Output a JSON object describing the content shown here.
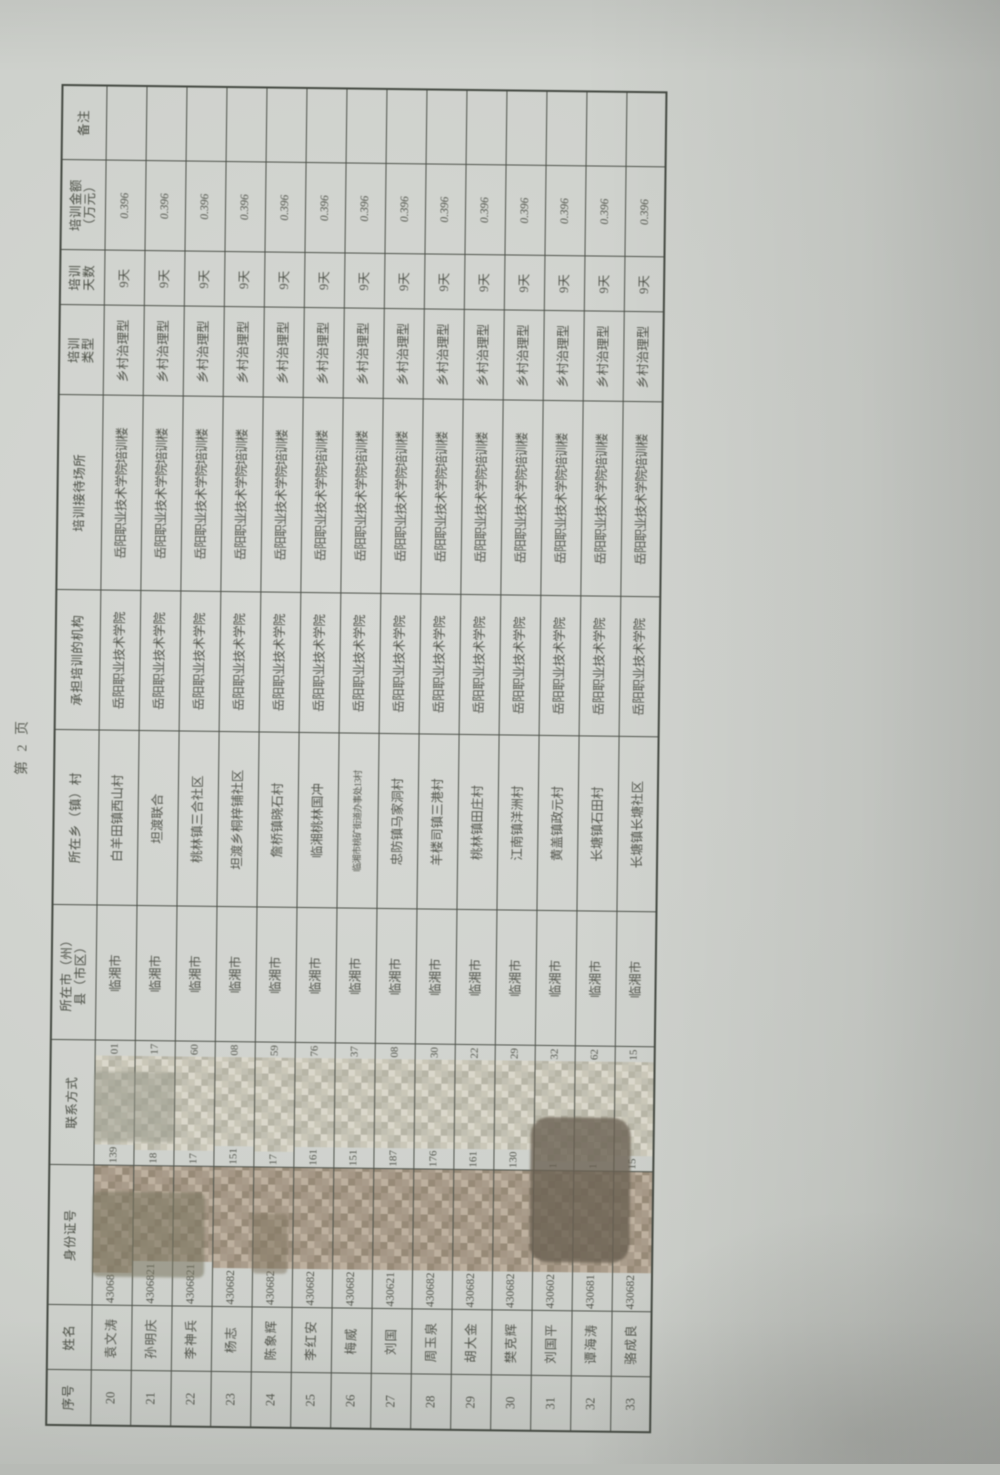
{
  "page_label": "第 2 页",
  "colors": {
    "paper": "#cdd0cb",
    "ink": "#51544b",
    "mosaic_tan": "#ab9d8b",
    "mosaic_cream": "#cdcaba"
  },
  "table": {
    "columns": [
      "序号",
      "姓名",
      "身份证号",
      "联系方式",
      "所在市（州）\n县（市区）",
      "所在乡（镇）村",
      "承担培训的机构",
      "培训接待场所",
      "培训\n类型",
      "培训\n天数",
      "培训金额\n（万元）",
      "备注"
    ],
    "rows": [
      {
        "no": "20",
        "name": "袁文涛",
        "id_prefix": "43068",
        "phone_prefix": "139",
        "phone_suffix": "01",
        "city": "临湘市",
        "village": "白羊田镇西山村",
        "org": "岳阳职业技术学院",
        "venue": "岳阳职业技术学院培训楼",
        "type": "乡村治理型",
        "days": "9天",
        "amount": "0.396",
        "note": ""
      },
      {
        "no": "21",
        "name": "孙明庆",
        "id_prefix": "4306821",
        "phone_prefix": "18",
        "phone_suffix": "17",
        "city": "临湘市",
        "village": "坦渡联合",
        "org": "岳阳职业技术学院",
        "venue": "岳阳职业技术学院培训楼",
        "type": "乡村治理型",
        "days": "9天",
        "amount": "0.396",
        "note": ""
      },
      {
        "no": "22",
        "name": "李神兵",
        "id_prefix": "4306821",
        "phone_prefix": "17",
        "phone_suffix": "60",
        "city": "临湘市",
        "village": "桃林镇三合社区",
        "org": "岳阳职业技术学院",
        "venue": "岳阳职业技术学院培训楼",
        "type": "乡村治理型",
        "days": "9天",
        "amount": "0.396",
        "note": ""
      },
      {
        "no": "23",
        "name": "杨志",
        "id_prefix": "430682",
        "phone_prefix": "151",
        "phone_suffix": "08",
        "city": "临湘市",
        "village": "坦渡乡桐梓铺社区",
        "org": "岳阳职业技术学院",
        "venue": "岳阳职业技术学院培训楼",
        "type": "乡村治理型",
        "days": "9天",
        "amount": "0.396",
        "note": ""
      },
      {
        "no": "24",
        "name": "陈象辉",
        "id_prefix": "430682",
        "phone_prefix": "17",
        "phone_suffix": "59",
        "city": "临湘市",
        "village": "詹桥镇晓石村",
        "org": "岳阳职业技术学院",
        "venue": "岳阳职业技术学院培训楼",
        "type": "乡村治理型",
        "days": "9天",
        "amount": "0.396",
        "note": ""
      },
      {
        "no": "25",
        "name": "李红安",
        "id_prefix": "430682",
        "phone_prefix": "161",
        "phone_suffix": "76",
        "city": "临湘市",
        "village": "临湘桃林国冲",
        "org": "岳阳职业技术学院",
        "venue": "岳阳职业技术学院培训楼",
        "type": "乡村治理型",
        "days": "9天",
        "amount": "0.396",
        "note": ""
      },
      {
        "no": "26",
        "name": "梅威",
        "id_prefix": "430682",
        "phone_prefix": "151",
        "phone_suffix": "37",
        "city": "临湘市",
        "village": "临湘市桃矿街道办事处13村",
        "org": "岳阳职业技术学院",
        "venue": "岳阳职业技术学院培训楼",
        "type": "乡村治理型",
        "days": "9天",
        "amount": "0.396",
        "note": ""
      },
      {
        "no": "27",
        "name": "刘国",
        "id_prefix": "430621",
        "phone_prefix": "187",
        "phone_suffix": "08",
        "city": "临湘市",
        "village": "忠防镇马家洞村",
        "org": "岳阳职业技术学院",
        "venue": "岳阳职业技术学院培训楼",
        "type": "乡村治理型",
        "days": "9天",
        "amount": "0.396",
        "note": ""
      },
      {
        "no": "28",
        "name": "周玉泉",
        "id_prefix": "430682",
        "phone_prefix": "176",
        "phone_suffix": "30",
        "city": "临湘市",
        "village": "羊楼司镇三港村",
        "org": "岳阳职业技术学院",
        "venue": "岳阳职业技术学院培训楼",
        "type": "乡村治理型",
        "days": "9天",
        "amount": "0.396",
        "note": ""
      },
      {
        "no": "29",
        "name": "胡大金",
        "id_prefix": "430682",
        "phone_prefix": "161",
        "phone_suffix": "22",
        "city": "临湘市",
        "village": "桃林镇田庄村",
        "org": "岳阳职业技术学院",
        "venue": "岳阳职业技术学院培训楼",
        "type": "乡村治理型",
        "days": "9天",
        "amount": "0.396",
        "note": ""
      },
      {
        "no": "30",
        "name": "樊克辉",
        "id_prefix": "430682",
        "phone_prefix": "130",
        "phone_suffix": "29",
        "city": "临湘市",
        "village": "江南镇洋洲村",
        "org": "岳阳职业技术学院",
        "venue": "岳阳职业技术学院培训楼",
        "type": "乡村治理型",
        "days": "9天",
        "amount": "0.396",
        "note": ""
      },
      {
        "no": "31",
        "name": "刘国平",
        "id_prefix": "430602",
        "phone_prefix": "1",
        "phone_suffix": "32",
        "city": "临湘市",
        "village": "黄盖镇政元村",
        "org": "岳阳职业技术学院",
        "venue": "岳阳职业技术学院培训楼",
        "type": "乡村治理型",
        "days": "9天",
        "amount": "0.396",
        "note": ""
      },
      {
        "no": "32",
        "name": "谭海涛",
        "id_prefix": "430681",
        "phone_prefix": "1",
        "phone_suffix": "62",
        "city": "临湘市",
        "village": "长塘镇石田村",
        "org": "岳阳职业技术学院",
        "venue": "岳阳职业技术学院培训楼",
        "type": "乡村治理型",
        "days": "9天",
        "amount": "0.396",
        "note": ""
      },
      {
        "no": "33",
        "name": "骆成良",
        "id_prefix": "430682",
        "phone_prefix": "15",
        "phone_suffix": "15",
        "city": "临湘市",
        "village": "长塘镇长塘社区",
        "org": "岳阳职业技术学院",
        "venue": "岳阳职业技术学院培训楼",
        "type": "乡村治理型",
        "days": "9天",
        "amount": "0.396",
        "note": ""
      }
    ]
  }
}
